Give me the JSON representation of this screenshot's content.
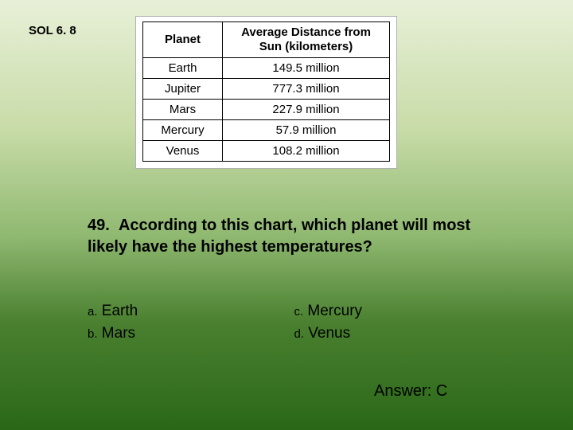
{
  "sol_label": "SOL 6. 8",
  "table": {
    "headers": [
      "Planet",
      "Average Distance from Sun (kilometers)"
    ],
    "rows": [
      [
        "Earth",
        "149.5 million"
      ],
      [
        "Jupiter",
        "777.3 million"
      ],
      [
        "Mars",
        "227.9 million"
      ],
      [
        "Mercury",
        "57.9 million"
      ],
      [
        "Venus",
        "108.2 million"
      ]
    ]
  },
  "question_number": "49.",
  "question_text": "According to this chart, which planet will most likely have the highest temperatures?",
  "options": {
    "a": {
      "letter": "a.",
      "text": " Earth"
    },
    "b": {
      "letter": "b.",
      "text": " Mars"
    },
    "c": {
      "letter": "c.",
      "text": " Mercury"
    },
    "d": {
      "letter": "d.",
      "text": " Venus"
    }
  },
  "answer_label": "Answer: C"
}
